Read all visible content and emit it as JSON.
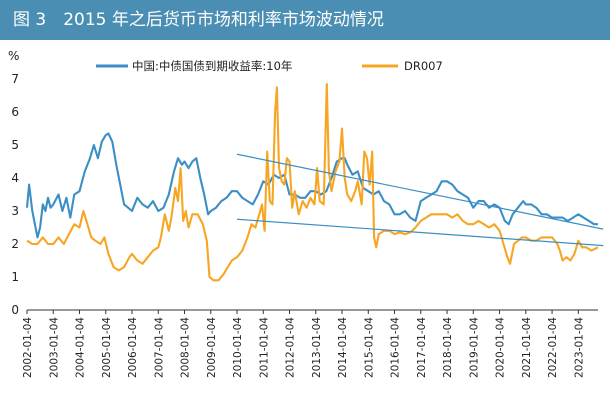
{
  "figure": {
    "title": "图 3　2015 年之后货币市场和利率市场波动情况"
  },
  "colors": {
    "header_bg": "#4a8fb3",
    "series_bond": "#3b8fc4",
    "series_dr": "#f6a623",
    "trendline": "#3b8fc4",
    "axis": "#333333"
  },
  "chart_data": {
    "type": "line",
    "title": "",
    "ylabel": "%",
    "ylim": [
      0,
      7
    ],
    "yticks": [
      "0",
      "1",
      "2",
      "3",
      "4",
      "5",
      "6",
      "7"
    ],
    "x_range": [
      2002.0,
      2023.75
    ],
    "x_ticks": [
      "2002-01-04",
      "2003-01-04",
      "2004-01-04",
      "2005-01-04",
      "2006-01-04",
      "2007-01-04",
      "2008-01-04",
      "2009-01-04",
      "2010-01-04",
      "2011-01-04",
      "2012-01-04",
      "2013-01-04",
      "2014-01-04",
      "2015-01-04",
      "2016-01-04",
      "2017-01-04",
      "2018-01-04",
      "2019-01-04",
      "2020-01-04",
      "2021-01-04",
      "2022-01-04",
      "2023-01-04"
    ],
    "legend_position": "top",
    "series": [
      {
        "name": "中国:中债国债到期收益率:10年",
        "color": "#3b8fc4",
        "points": [
          [
            2002.0,
            3.1
          ],
          [
            2002.08,
            3.8
          ],
          [
            2002.2,
            3.0
          ],
          [
            2002.3,
            2.6
          ],
          [
            2002.4,
            2.2
          ],
          [
            2002.5,
            2.5
          ],
          [
            2002.6,
            3.2
          ],
          [
            2002.7,
            3.0
          ],
          [
            2002.8,
            3.4
          ],
          [
            2002.9,
            3.1
          ],
          [
            2003.0,
            3.2
          ],
          [
            2003.2,
            3.5
          ],
          [
            2003.35,
            3.0
          ],
          [
            2003.5,
            3.4
          ],
          [
            2003.65,
            2.8
          ],
          [
            2003.8,
            3.5
          ],
          [
            2004.0,
            3.6
          ],
          [
            2004.2,
            4.2
          ],
          [
            2004.4,
            4.6
          ],
          [
            2004.55,
            5.0
          ],
          [
            2004.7,
            4.6
          ],
          [
            2004.85,
            5.1
          ],
          [
            2005.0,
            5.3
          ],
          [
            2005.1,
            5.35
          ],
          [
            2005.25,
            5.1
          ],
          [
            2005.4,
            4.4
          ],
          [
            2005.55,
            3.8
          ],
          [
            2005.7,
            3.2
          ],
          [
            2005.85,
            3.1
          ],
          [
            2006.0,
            3.0
          ],
          [
            2006.2,
            3.4
          ],
          [
            2006.4,
            3.2
          ],
          [
            2006.6,
            3.1
          ],
          [
            2006.8,
            3.3
          ],
          [
            2007.0,
            3.0
          ],
          [
            2007.2,
            3.1
          ],
          [
            2007.4,
            3.5
          ],
          [
            2007.6,
            4.2
          ],
          [
            2007.75,
            4.6
          ],
          [
            2007.9,
            4.4
          ],
          [
            2008.0,
            4.5
          ],
          [
            2008.15,
            4.3
          ],
          [
            2008.3,
            4.5
          ],
          [
            2008.45,
            4.6
          ],
          [
            2008.6,
            4.0
          ],
          [
            2008.75,
            3.5
          ],
          [
            2008.9,
            2.9
          ],
          [
            2009.0,
            3.0
          ],
          [
            2009.2,
            3.1
          ],
          [
            2009.4,
            3.3
          ],
          [
            2009.6,
            3.4
          ],
          [
            2009.8,
            3.6
          ],
          [
            2010.0,
            3.6
          ],
          [
            2010.2,
            3.4
          ],
          [
            2010.4,
            3.3
          ],
          [
            2010.6,
            3.2
          ],
          [
            2010.8,
            3.5
          ],
          [
            2011.0,
            3.9
          ],
          [
            2011.2,
            3.8
          ],
          [
            2011.4,
            4.1
          ],
          [
            2011.6,
            4.0
          ],
          [
            2011.8,
            4.1
          ],
          [
            2012.0,
            3.5
          ],
          [
            2012.2,
            3.5
          ],
          [
            2012.4,
            3.4
          ],
          [
            2012.6,
            3.4
          ],
          [
            2012.8,
            3.6
          ],
          [
            2013.0,
            3.6
          ],
          [
            2013.2,
            3.5
          ],
          [
            2013.4,
            3.6
          ],
          [
            2013.6,
            4.0
          ],
          [
            2013.8,
            4.5
          ],
          [
            2014.0,
            4.6
          ],
          [
            2014.1,
            4.6
          ],
          [
            2014.2,
            4.4
          ],
          [
            2014.4,
            4.1
          ],
          [
            2014.6,
            4.2
          ],
          [
            2014.8,
            3.7
          ],
          [
            2015.0,
            3.6
          ],
          [
            2015.2,
            3.5
          ],
          [
            2015.4,
            3.6
          ],
          [
            2015.6,
            3.3
          ],
          [
            2015.8,
            3.2
          ],
          [
            2016.0,
            2.9
          ],
          [
            2016.2,
            2.9
          ],
          [
            2016.4,
            3.0
          ],
          [
            2016.6,
            2.8
          ],
          [
            2016.8,
            2.7
          ],
          [
            2017.0,
            3.3
          ],
          [
            2017.2,
            3.4
          ],
          [
            2017.4,
            3.5
          ],
          [
            2017.6,
            3.6
          ],
          [
            2017.8,
            3.9
          ],
          [
            2018.0,
            3.9
          ],
          [
            2018.2,
            3.8
          ],
          [
            2018.4,
            3.6
          ],
          [
            2018.6,
            3.5
          ],
          [
            2018.8,
            3.4
          ],
          [
            2019.0,
            3.1
          ],
          [
            2019.2,
            3.3
          ],
          [
            2019.4,
            3.3
          ],
          [
            2019.6,
            3.1
          ],
          [
            2019.8,
            3.2
          ],
          [
            2020.0,
            3.1
          ],
          [
            2020.2,
            2.7
          ],
          [
            2020.35,
            2.6
          ],
          [
            2020.5,
            2.9
          ],
          [
            2020.7,
            3.1
          ],
          [
            2020.9,
            3.3
          ],
          [
            2021.0,
            3.2
          ],
          [
            2021.2,
            3.2
          ],
          [
            2021.4,
            3.1
          ],
          [
            2021.6,
            2.9
          ],
          [
            2021.8,
            2.9
          ],
          [
            2022.0,
            2.8
          ],
          [
            2022.2,
            2.8
          ],
          [
            2022.4,
            2.8
          ],
          [
            2022.6,
            2.7
          ],
          [
            2022.8,
            2.8
          ],
          [
            2023.0,
            2.9
          ],
          [
            2023.2,
            2.8
          ],
          [
            2023.4,
            2.7
          ],
          [
            2023.6,
            2.6
          ],
          [
            2023.75,
            2.6
          ]
        ]
      },
      {
        "name": "DR007",
        "color": "#f6a623",
        "points": [
          [
            2002.0,
            2.1
          ],
          [
            2002.2,
            2.0
          ],
          [
            2002.4,
            2.0
          ],
          [
            2002.6,
            2.2
          ],
          [
            2002.8,
            2.0
          ],
          [
            2003.0,
            2.0
          ],
          [
            2003.2,
            2.2
          ],
          [
            2003.4,
            2.0
          ],
          [
            2003.6,
            2.3
          ],
          [
            2003.8,
            2.6
          ],
          [
            2004.0,
            2.5
          ],
          [
            2004.15,
            3.0
          ],
          [
            2004.3,
            2.6
          ],
          [
            2004.45,
            2.2
          ],
          [
            2004.6,
            2.1
          ],
          [
            2004.8,
            2.0
          ],
          [
            2004.95,
            2.2
          ],
          [
            2005.1,
            1.7
          ],
          [
            2005.3,
            1.3
          ],
          [
            2005.5,
            1.2
          ],
          [
            2005.7,
            1.3
          ],
          [
            2005.9,
            1.6
          ],
          [
            2006.0,
            1.7
          ],
          [
            2006.2,
            1.5
          ],
          [
            2006.4,
            1.4
          ],
          [
            2006.6,
            1.6
          ],
          [
            2006.8,
            1.8
          ],
          [
            2007.0,
            1.9
          ],
          [
            2007.1,
            2.2
          ],
          [
            2007.25,
            2.9
          ],
          [
            2007.4,
            2.4
          ],
          [
            2007.5,
            2.8
          ],
          [
            2007.65,
            3.7
          ],
          [
            2007.75,
            3.3
          ],
          [
            2007.85,
            4.3
          ],
          [
            2007.95,
            2.7
          ],
          [
            2008.05,
            3.0
          ],
          [
            2008.15,
            2.5
          ],
          [
            2008.3,
            2.9
          ],
          [
            2008.5,
            2.9
          ],
          [
            2008.7,
            2.6
          ],
          [
            2008.85,
            2.1
          ],
          [
            2008.95,
            1.0
          ],
          [
            2009.1,
            0.9
          ],
          [
            2009.3,
            0.9
          ],
          [
            2009.5,
            1.1
          ],
          [
            2009.65,
            1.3
          ],
          [
            2009.8,
            1.5
          ],
          [
            2010.0,
            1.6
          ],
          [
            2010.2,
            1.8
          ],
          [
            2010.4,
            2.2
          ],
          [
            2010.55,
            2.6
          ],
          [
            2010.7,
            2.5
          ],
          [
            2010.85,
            2.9
          ],
          [
            2010.95,
            3.2
          ],
          [
            2011.05,
            2.4
          ],
          [
            2011.15,
            4.8
          ],
          [
            2011.25,
            3.3
          ],
          [
            2011.35,
            3.2
          ],
          [
            2011.45,
            6.0
          ],
          [
            2011.52,
            6.75
          ],
          [
            2011.6,
            4.3
          ],
          [
            2011.7,
            3.9
          ],
          [
            2011.8,
            3.8
          ],
          [
            2011.9,
            4.6
          ],
          [
            2012.0,
            4.5
          ],
          [
            2012.1,
            3.1
          ],
          [
            2012.2,
            3.6
          ],
          [
            2012.35,
            2.9
          ],
          [
            2012.5,
            3.3
          ],
          [
            2012.65,
            3.1
          ],
          [
            2012.8,
            3.4
          ],
          [
            2012.95,
            3.2
          ],
          [
            2013.05,
            4.3
          ],
          [
            2013.15,
            3.3
          ],
          [
            2013.3,
            3.2
          ],
          [
            2013.42,
            6.85
          ],
          [
            2013.5,
            4.2
          ],
          [
            2013.6,
            3.6
          ],
          [
            2013.75,
            4.2
          ],
          [
            2013.9,
            4.5
          ],
          [
            2014.0,
            5.5
          ],
          [
            2014.1,
            4.0
          ],
          [
            2014.2,
            3.5
          ],
          [
            2014.35,
            3.3
          ],
          [
            2014.5,
            3.6
          ],
          [
            2014.6,
            3.9
          ],
          [
            2014.75,
            3.2
          ],
          [
            2014.85,
            4.8
          ],
          [
            2014.95,
            4.6
          ],
          [
            2015.05,
            3.8
          ],
          [
            2015.15,
            4.8
          ],
          [
            2015.22,
            2.2
          ],
          [
            2015.3,
            1.9
          ],
          [
            2015.4,
            2.3
          ],
          [
            2015.6,
            2.4
          ],
          [
            2015.8,
            2.4
          ],
          [
            2016.0,
            2.3
          ],
          [
            2016.2,
            2.35
          ],
          [
            2016.4,
            2.3
          ],
          [
            2016.6,
            2.35
          ],
          [
            2016.8,
            2.5
          ],
          [
            2017.0,
            2.7
          ],
          [
            2017.2,
            2.8
          ],
          [
            2017.4,
            2.9
          ],
          [
            2017.6,
            2.9
          ],
          [
            2017.8,
            2.9
          ],
          [
            2018.0,
            2.9
          ],
          [
            2018.2,
            2.8
          ],
          [
            2018.4,
            2.9
          ],
          [
            2018.6,
            2.7
          ],
          [
            2018.8,
            2.6
          ],
          [
            2019.0,
            2.6
          ],
          [
            2019.2,
            2.7
          ],
          [
            2019.4,
            2.6
          ],
          [
            2019.6,
            2.5
          ],
          [
            2019.8,
            2.6
          ],
          [
            2020.0,
            2.4
          ],
          [
            2020.15,
            2.0
          ],
          [
            2020.3,
            1.6
          ],
          [
            2020.4,
            1.4
          ],
          [
            2020.55,
            2.0
          ],
          [
            2020.7,
            2.1
          ],
          [
            2020.85,
            2.2
          ],
          [
            2021.0,
            2.2
          ],
          [
            2021.2,
            2.1
          ],
          [
            2021.4,
            2.1
          ],
          [
            2021.6,
            2.2
          ],
          [
            2021.8,
            2.2
          ],
          [
            2022.0,
            2.2
          ],
          [
            2022.2,
            2.0
          ],
          [
            2022.3,
            1.8
          ],
          [
            2022.4,
            1.5
          ],
          [
            2022.55,
            1.6
          ],
          [
            2022.7,
            1.5
          ],
          [
            2022.85,
            1.7
          ],
          [
            2023.0,
            2.1
          ],
          [
            2023.15,
            1.9
          ],
          [
            2023.3,
            1.9
          ],
          [
            2023.5,
            1.8
          ],
          [
            2023.75,
            1.9
          ]
        ]
      }
    ],
    "trendlines": [
      {
        "from": [
          2010.0,
          4.72
        ],
        "to": [
          2023.95,
          2.45
        ]
      },
      {
        "from": [
          2010.0,
          2.75
        ],
        "to": [
          2023.95,
          1.95
        ]
      }
    ]
  }
}
